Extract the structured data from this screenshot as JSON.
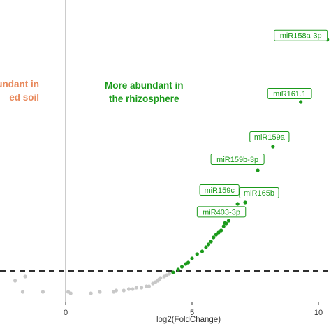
{
  "chart_data": {
    "type": "scatter",
    "xlabel": "log2(FoldChange)",
    "ylabel": "",
    "title": "",
    "x_ticks": [
      0,
      5,
      10
    ],
    "xlim": [
      -2.6,
      10.5
    ],
    "ylim": [
      -1.5,
      120
    ],
    "threshold_y": 12,
    "annotations": [
      {
        "text": "More abundant in\nthe rhizosphere",
        "color": "#1a9a1a"
      },
      {
        "text": "abundant in\ned soil",
        "color": "#e8895c"
      }
    ],
    "labeled_points": [
      {
        "label": "miR158a-3p",
        "x": 10.35,
        "y": 111.4
      },
      {
        "label": "miR161.1",
        "x": 9.3,
        "y": 84.6
      },
      {
        "label": "miR159a",
        "x": 8.2,
        "y": 65.4
      },
      {
        "label": "miR159b-3p",
        "x": 7.6,
        "y": 55.2
      },
      {
        "label": "miR159c",
        "x": 6.8,
        "y": 40.8
      },
      {
        "label": "miR165b",
        "x": 7.1,
        "y": 41.4
      },
      {
        "label": "miR403-3p",
        "x": 6.3,
        "y": 32.6
      }
    ],
    "series": [
      {
        "name": "",
        "color": "#1a9a1a",
        "points": [
          [
            4.25,
            11.4
          ],
          [
            4.45,
            12.6
          ],
          [
            4.6,
            13.8
          ],
          [
            4.75,
            15.0
          ],
          [
            4.85,
            15.6
          ],
          [
            5.0,
            17.4
          ],
          [
            5.2,
            19.2
          ],
          [
            5.4,
            20.4
          ],
          [
            5.55,
            22.2
          ],
          [
            5.65,
            23.4
          ],
          [
            5.75,
            24.6
          ],
          [
            5.85,
            26.4
          ],
          [
            5.95,
            27.6
          ],
          [
            6.05,
            28.5
          ],
          [
            6.15,
            29.4
          ],
          [
            6.25,
            31.2
          ],
          [
            6.35,
            32.4
          ],
          [
            6.45,
            33.6
          ]
        ]
      },
      {
        "name": "",
        "color": "#c8c8c8",
        "points": [
          [
            -2.0,
            7.8
          ],
          [
            -1.6,
            9.6
          ],
          [
            -1.7,
            3.0
          ],
          [
            -0.9,
            3.0
          ],
          [
            0.1,
            3.0
          ],
          [
            0.2,
            2.4
          ],
          [
            1.0,
            2.4
          ],
          [
            1.35,
            3.0
          ],
          [
            1.9,
            3.0
          ],
          [
            2.0,
            3.6
          ],
          [
            2.3,
            3.6
          ],
          [
            2.5,
            4.2
          ],
          [
            2.65,
            4.2
          ],
          [
            2.8,
            4.8
          ],
          [
            3.0,
            4.8
          ],
          [
            3.2,
            5.4
          ],
          [
            3.3,
            5.4
          ],
          [
            3.45,
            6.6
          ],
          [
            3.55,
            7.2
          ],
          [
            3.65,
            7.8
          ],
          [
            3.7,
            8.4
          ],
          [
            3.75,
            9.0
          ],
          [
            3.9,
            9.6
          ],
          [
            4.0,
            10.2
          ],
          [
            4.1,
            10.8
          ]
        ]
      }
    ],
    "grid": false,
    "legend": "none"
  }
}
